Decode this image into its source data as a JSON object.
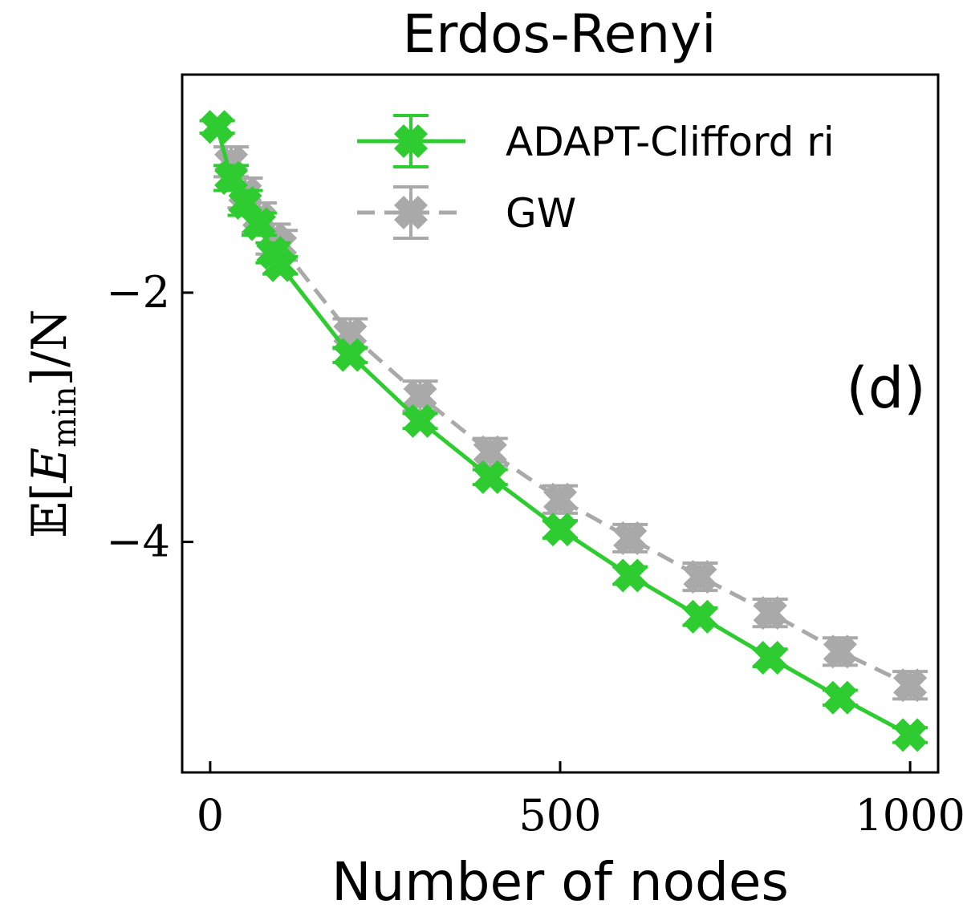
{
  "chart_data": {
    "type": "line",
    "title": "Erdos-Renyi",
    "xlabel": "Number of nodes",
    "ylabel": "𝔼[E_min]/N",
    "ylabel_parts": {
      "prefix": "𝔼[",
      "main": "E",
      "sub": "min",
      "suffix": "]/N"
    },
    "panel_label": "(d)",
    "xlim": [
      -40,
      1040
    ],
    "ylim": [
      -5.85,
      -0.25
    ],
    "xticks": [
      0,
      500,
      1000
    ],
    "xtick_labels": [
      "0",
      "500",
      "1000"
    ],
    "yticks": [
      -2,
      -4
    ],
    "ytick_labels": [
      "−2",
      "−4"
    ],
    "grid": false,
    "legend_position": "top-right",
    "series": [
      {
        "name": "ADAPT-Clifford ri",
        "color": "#2ecc30",
        "linestyle": "solid",
        "marker": "X",
        "x": [
          10,
          30,
          50,
          70,
          90,
          100,
          200,
          300,
          400,
          500,
          600,
          700,
          800,
          900,
          1000
        ],
        "y": [
          -0.67,
          -1.08,
          -1.28,
          -1.45,
          -1.68,
          -1.78,
          -2.5,
          -3.03,
          -3.48,
          -3.9,
          -4.27,
          -4.6,
          -4.93,
          -5.25,
          -5.55
        ],
        "yerr": [
          0.05,
          0.1,
          0.1,
          0.09,
          0.08,
          0.07,
          0.06,
          0.06,
          0.06,
          0.07,
          0.07,
          0.07,
          0.07,
          0.06,
          0.06
        ]
      },
      {
        "name": "GW",
        "color": "#a9a9a9",
        "linestyle": "dashed",
        "marker": "X",
        "x": [
          10,
          30,
          50,
          70,
          90,
          100,
          200,
          300,
          400,
          500,
          600,
          700,
          800,
          900,
          1000
        ],
        "y": [
          -0.67,
          -0.95,
          -1.2,
          -1.4,
          -1.57,
          -1.62,
          -2.33,
          -2.83,
          -3.28,
          -3.66,
          -3.97,
          -4.28,
          -4.57,
          -4.88,
          -5.15
        ],
        "yerr": [
          0.05,
          0.12,
          0.12,
          0.12,
          0.12,
          0.12,
          0.12,
          0.12,
          0.11,
          0.11,
          0.11,
          0.11,
          0.11,
          0.11,
          0.11
        ]
      }
    ]
  }
}
